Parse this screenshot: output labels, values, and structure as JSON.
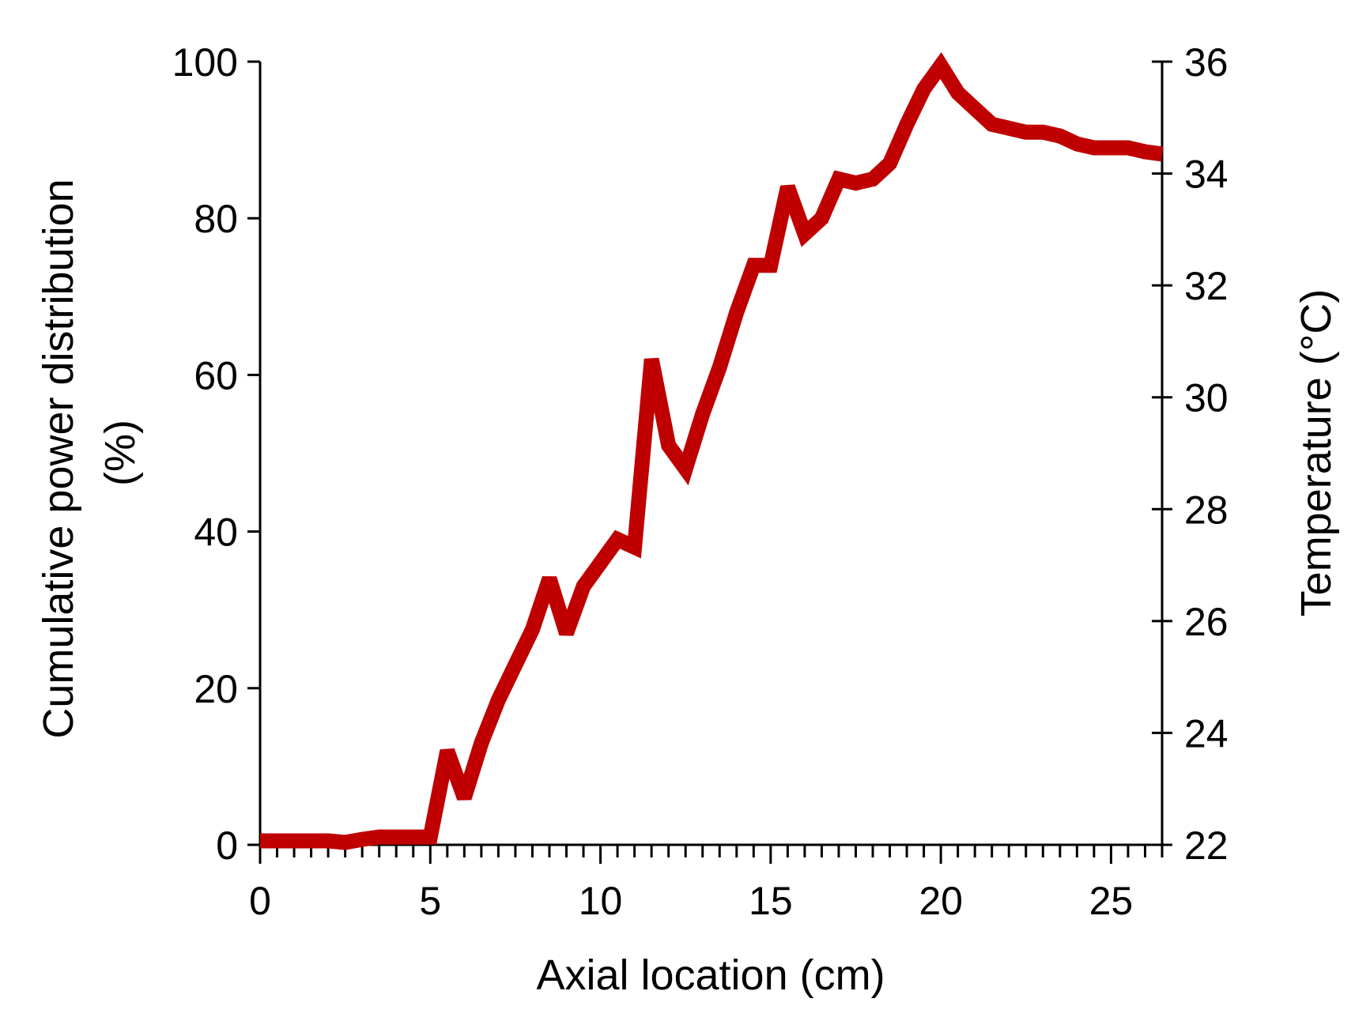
{
  "chart_data": {
    "type": "line",
    "title": "",
    "xlabel": "Axial location (cm)",
    "ylabel_lines": [
      "Cumulative power distribution",
      "(%)"
    ],
    "y2label": "Temperature (°C)",
    "xlim": [
      0,
      26.5
    ],
    "ylim": [
      0,
      100
    ],
    "y2lim": [
      22,
      36
    ],
    "x_ticks": [
      "0",
      "5",
      "10",
      "15",
      "20",
      "25"
    ],
    "y_ticks": [
      "0",
      "20",
      "40",
      "60",
      "80",
      "100"
    ],
    "y2_ticks": [
      "22",
      "24",
      "26",
      "28",
      "30",
      "32",
      "34",
      "36"
    ],
    "x_minor_step": 0.5,
    "grid": false,
    "series": [
      {
        "axis": "left",
        "color": "#c00000",
        "x": [
          0,
          0.5,
          1,
          1.5,
          2,
          2.5,
          3,
          3.5,
          4,
          4.5,
          5,
          5.5,
          6,
          6.5,
          7,
          7.5,
          8,
          8.5,
          9,
          9.5,
          10,
          10.5,
          11,
          11.5,
          12,
          12.5,
          13,
          13.5,
          14,
          14.5,
          15,
          15.5,
          16,
          16.5,
          17,
          17.5,
          18,
          18.5,
          19,
          19.5,
          20,
          20.5,
          21,
          21.5,
          22,
          22.5,
          23,
          23.5,
          24,
          24.5,
          25,
          25.5,
          26,
          26.5
        ],
        "values": [
          0.5,
          0.5,
          0.5,
          0.5,
          0.5,
          0.3,
          0.7,
          1.0,
          1.0,
          1.0,
          1.0,
          12.0,
          6.0,
          13.0,
          18.5,
          23.0,
          27.5,
          34.0,
          27.0,
          33.0,
          36.0,
          39.0,
          38.0,
          62.0,
          51.0,
          48.0,
          55.0,
          61.0,
          68.0,
          74.0,
          74.0,
          84.0,
          78.0,
          80.0,
          85.0,
          84.5,
          85.0,
          87.0,
          92.0,
          96.5,
          99.5,
          96.0,
          94.0,
          92.0,
          91.5,
          91.0,
          91.0,
          90.5,
          89.5,
          89.0,
          89.0,
          89.0,
          88.5,
          88.2
        ]
      }
    ]
  }
}
